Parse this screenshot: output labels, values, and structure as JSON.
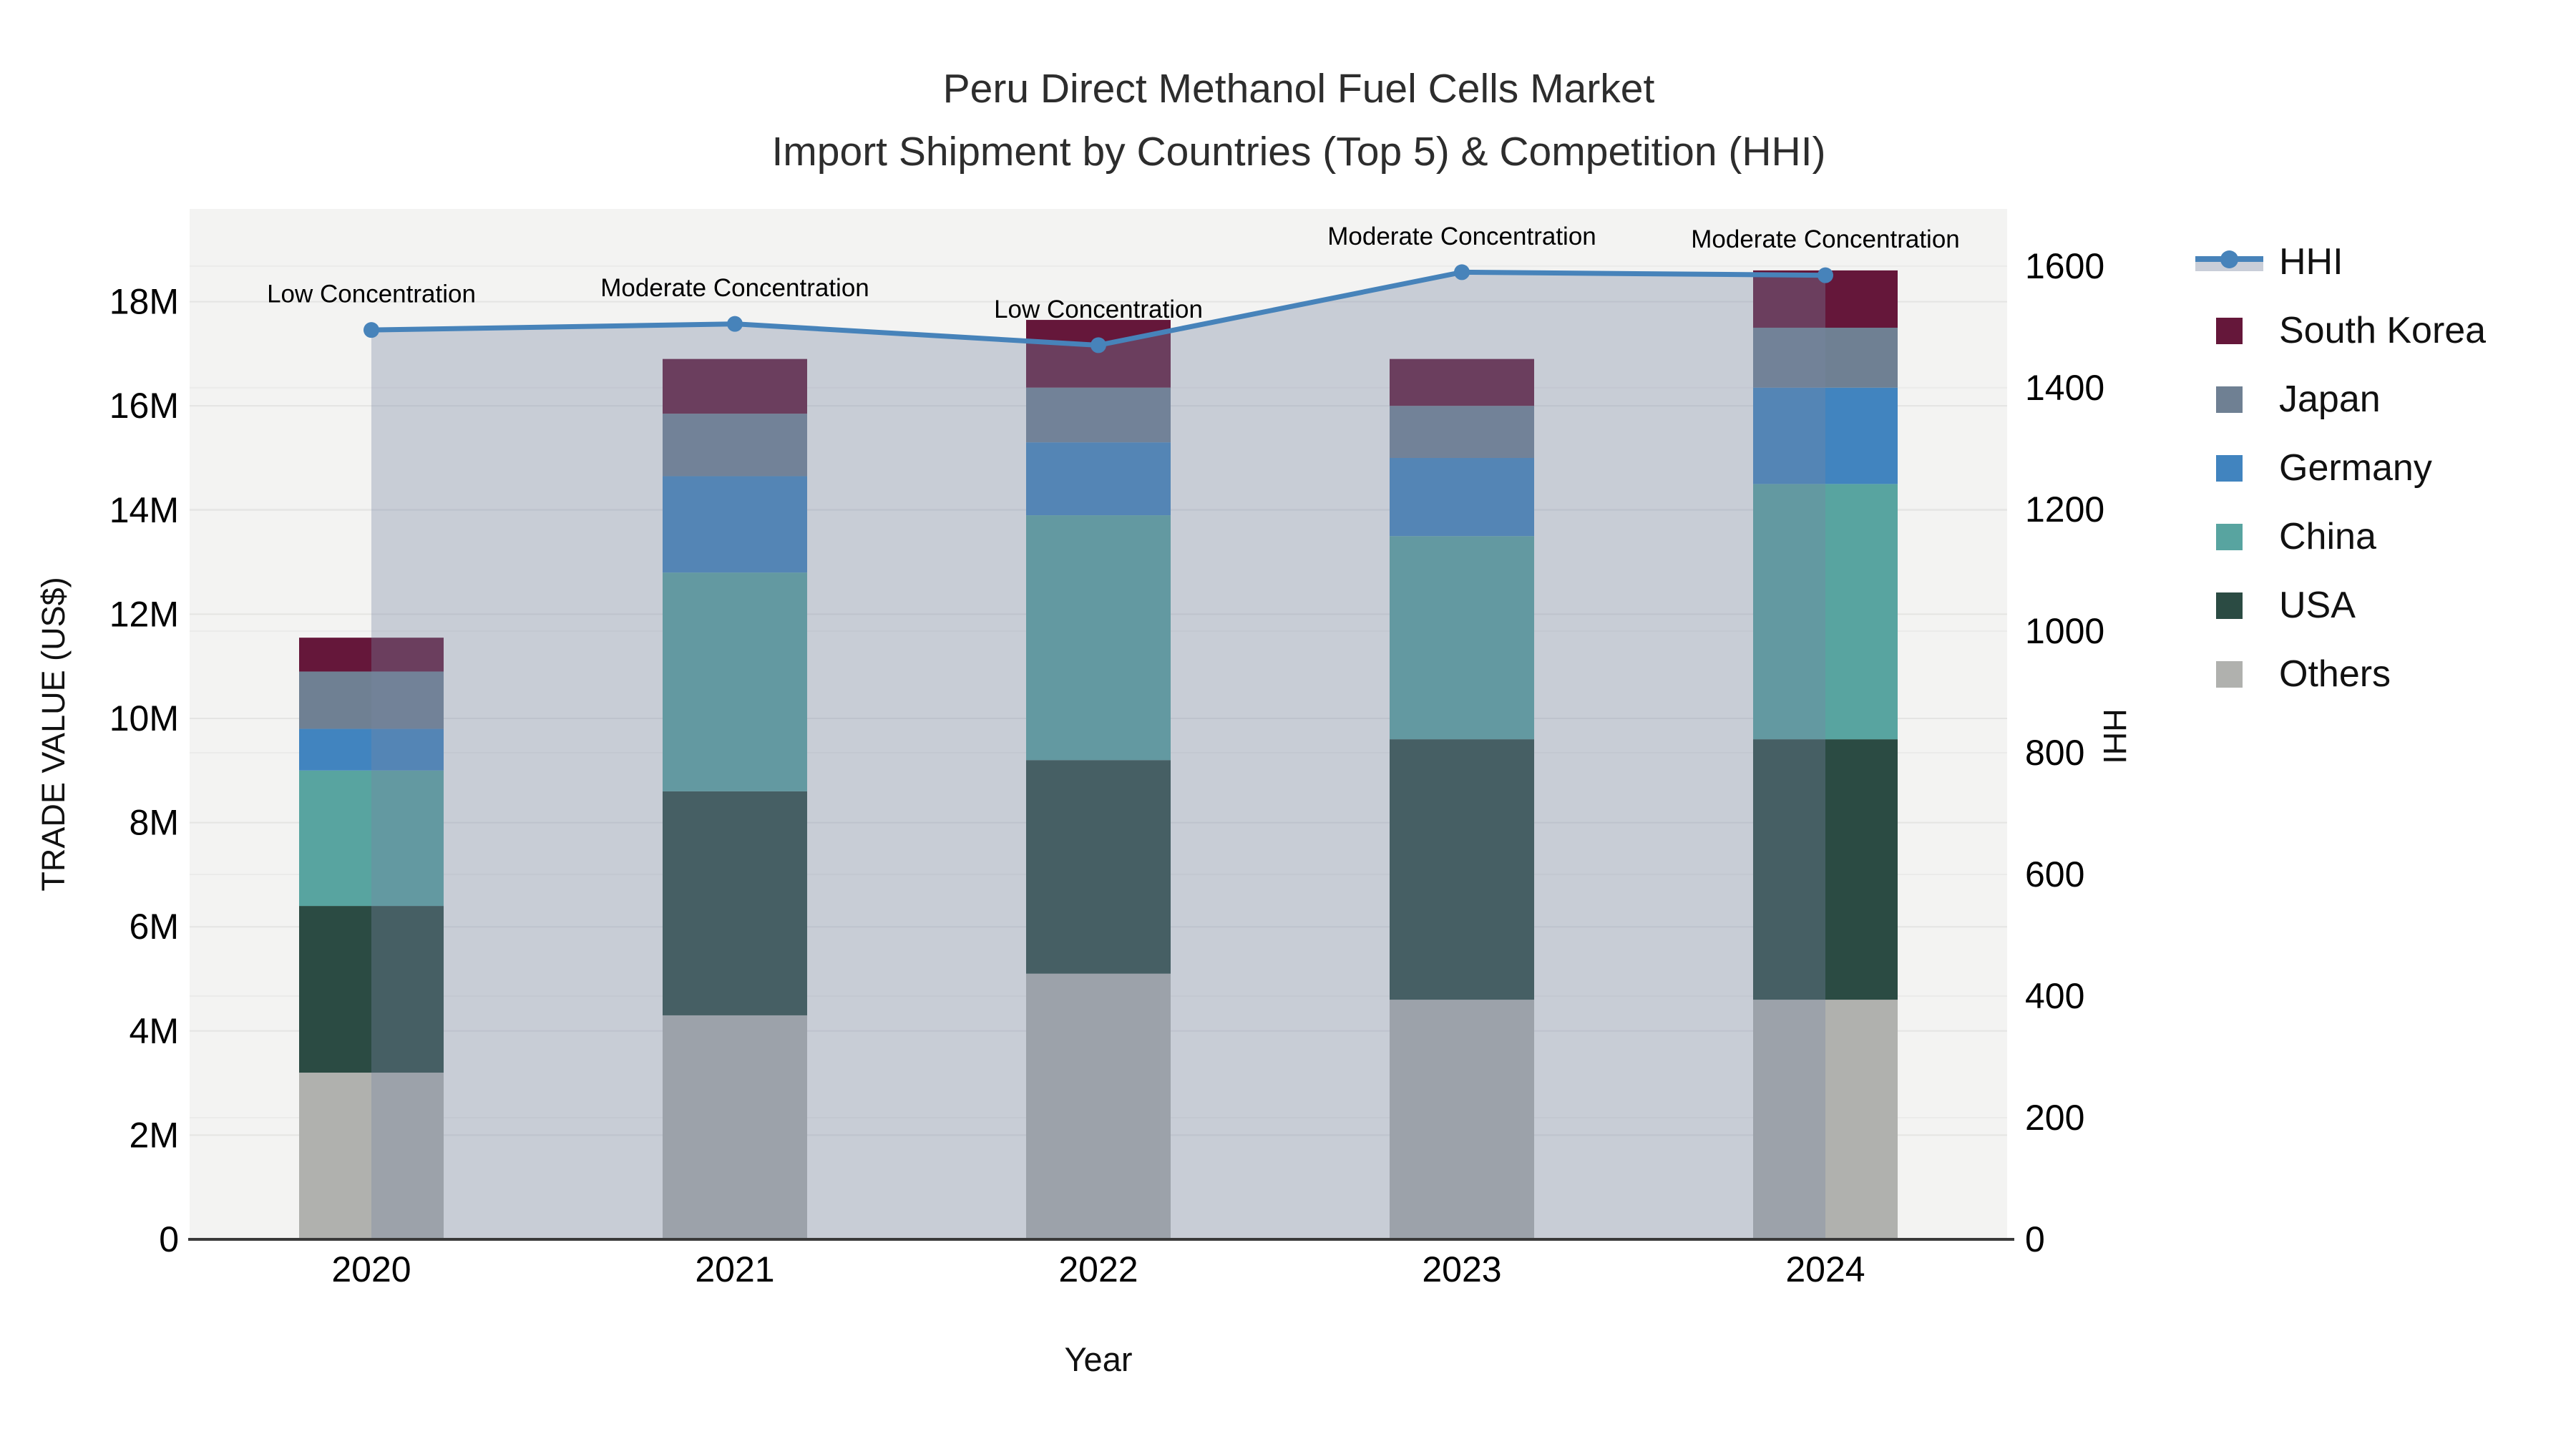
{
  "title": {
    "line1": "Peru Direct Methanol Fuel Cells Market",
    "line2": "Import Shipment by Countries (Top 5) & Competition (HHI)"
  },
  "chart_data": {
    "type": "stacked-bar+line",
    "title": "Peru Direct Methanol Fuel Cells Market - Import Shipment by Countries (Top 5) & Competition (HHI)",
    "xlabel": "Year",
    "ylabel_left": "TRADE VALUE (US$)",
    "ylabel_right": "HHI",
    "categories": [
      "2020",
      "2021",
      "2022",
      "2023",
      "2024"
    ],
    "series": [
      {
        "name": "Others",
        "color": "#b0b1ae",
        "values": [
          3.2,
          4.3,
          5.1,
          4.6,
          4.6
        ]
      },
      {
        "name": "USA",
        "color": "#2b4b43",
        "values": [
          3.2,
          4.3,
          4.1,
          5.0,
          5.0
        ]
      },
      {
        "name": "China",
        "color": "#58a4a0",
        "values": [
          2.6,
          4.2,
          4.7,
          3.9,
          4.9
        ]
      },
      {
        "name": "Germany",
        "color": "#4184bf",
        "values": [
          0.8,
          1.85,
          1.4,
          1.5,
          1.85
        ]
      },
      {
        "name": "Japan",
        "color": "#6f8093",
        "values": [
          1.1,
          1.2,
          1.05,
          1.0,
          1.15
        ]
      },
      {
        "name": "South Korea",
        "color": "#65173a",
        "values": [
          0.65,
          1.05,
          1.3,
          0.9,
          1.1
        ]
      }
    ],
    "hhi_line": {
      "name": "HHI",
      "color": "#4783ba",
      "fill_color": "rgba(120,134,162,0.35)",
      "values": [
        1495,
        1505,
        1470,
        1590,
        1585
      ]
    },
    "annotations": [
      "Low Concentration",
      "Moderate Concentration",
      "Low Concentration",
      "Moderate Concentration",
      "Moderate Concentration"
    ],
    "ytick_vals_left": [
      0,
      2,
      4,
      6,
      8,
      10,
      12,
      14,
      16,
      18
    ],
    "ytick_labels_left": [
      "0",
      "2M",
      "4M",
      "6M",
      "8M",
      "10M",
      "12M",
      "14M",
      "16M",
      "18M"
    ],
    "ytick_vals_right": [
      0,
      200,
      400,
      600,
      800,
      1000,
      1200,
      1400,
      1600
    ],
    "ytick_labels_right": [
      "0",
      "200",
      "400",
      "600",
      "800",
      "1000",
      "1200",
      "1400",
      "1600"
    ],
    "ylim_left": [
      0,
      19.78
    ],
    "ylim_right": [
      0,
      1694
    ],
    "grid": true,
    "legend_order": [
      "HHI",
      "South Korea",
      "Japan",
      "Germany",
      "China",
      "USA",
      "Others"
    ],
    "legend_position": "right"
  }
}
